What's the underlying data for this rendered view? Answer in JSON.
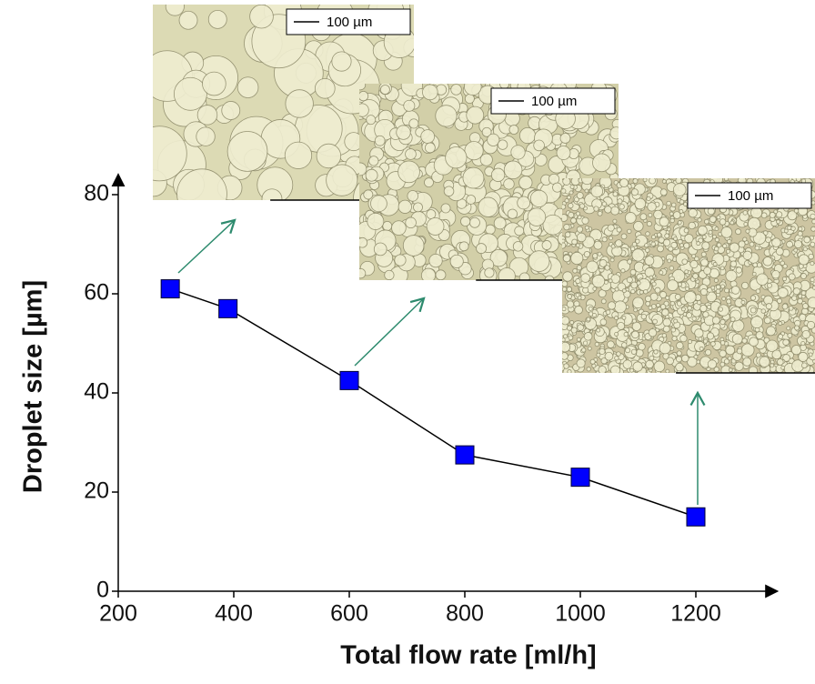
{
  "chart_data": {
    "type": "line",
    "x_label": "Total  flow rate  [ml/h]",
    "y_label": "Droplet size [µm]",
    "x": [
      290,
      390,
      600,
      800,
      1000,
      1200
    ],
    "series": [
      {
        "color": "#0000ff",
        "values": [
          61,
          57,
          42.5,
          27.5,
          23,
          15
        ]
      }
    ],
    "xlim": [
      200,
      1320
    ],
    "xticks": [
      200,
      400,
      600,
      800,
      1000,
      1200
    ],
    "ylim": [
      0,
      82
    ],
    "yticks": [
      0,
      20,
      40,
      60,
      80
    ],
    "annotations": [
      "100 µm",
      "100 µm",
      "100 µm"
    ]
  }
}
